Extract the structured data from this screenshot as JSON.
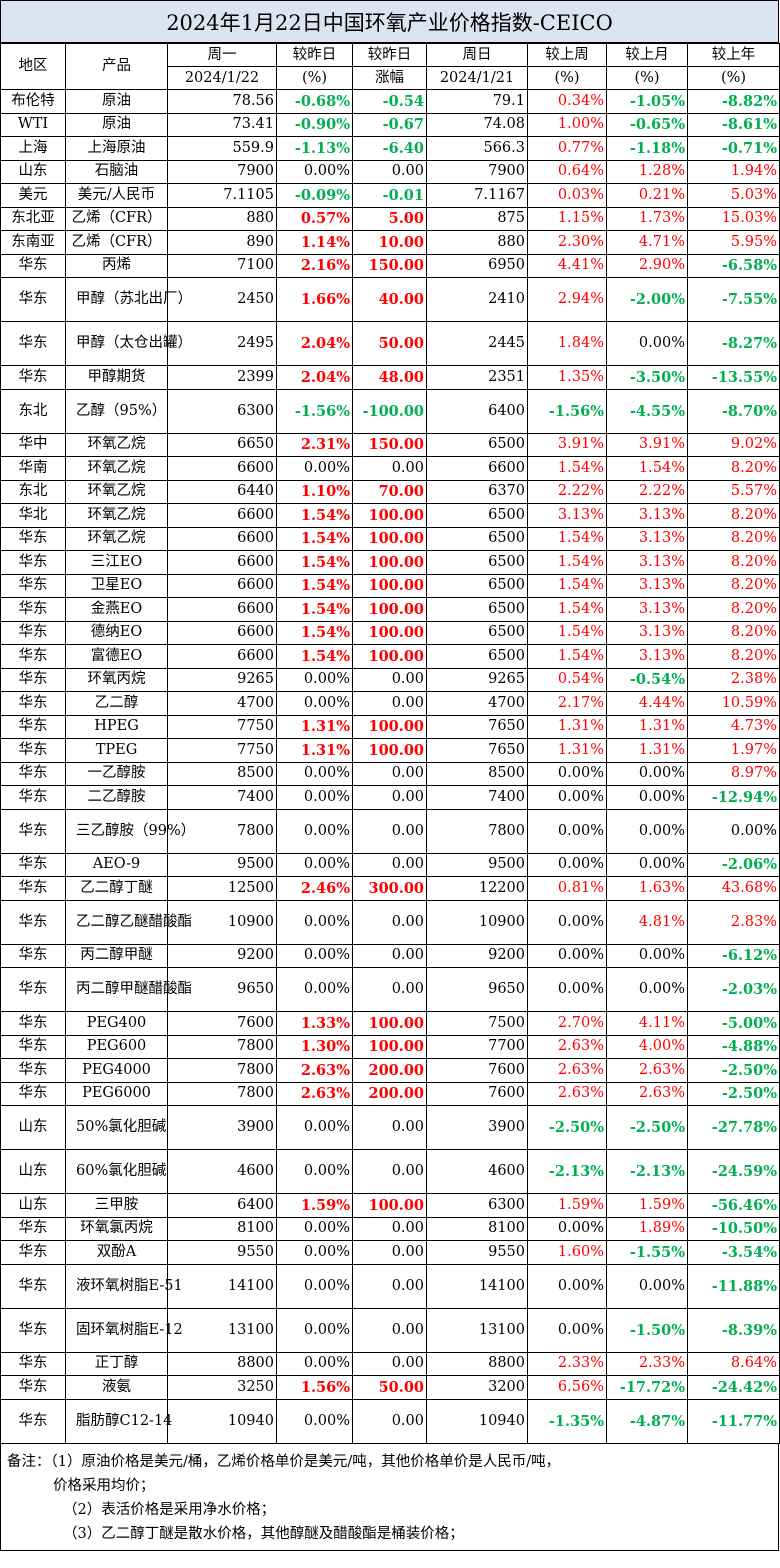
{
  "title": "2024年1月22日中国环氧产业价格指数-CEICO",
  "headers": {
    "region": "地区",
    "product": "产品",
    "mon": "周一",
    "mon_date": "2024/1/22",
    "chg_pct": "较昨日",
    "chg_pct_unit": "(%)",
    "chg_amt": "较昨日",
    "chg_amt_unit": "涨幅",
    "sun": "周日",
    "sun_date": "2024/1/21",
    "wk": "较上周",
    "wk_unit": "(%)",
    "mo": "较上月",
    "mo_unit": "(%)",
    "yr": "较上年",
    "yr_unit": "(%)"
  },
  "rows": [
    {
      "region": "布伦特",
      "product": "原油",
      "mon": "78.56",
      "dpct": "-0.68%",
      "damt": "-0.54",
      "sun": "79.1",
      "wk": "0.34%",
      "mo": "-1.05%",
      "yr": "-8.82%"
    },
    {
      "region": "WTI",
      "product": "原油",
      "mon": "73.41",
      "dpct": "-0.90%",
      "damt": "-0.67",
      "sun": "74.08",
      "wk": "1.00%",
      "mo": "-0.65%",
      "yr": "-8.61%"
    },
    {
      "region": "上海",
      "product": "上海原油",
      "mon": "559.9",
      "dpct": "-1.13%",
      "damt": "-6.40",
      "sun": "566.3",
      "wk": "0.77%",
      "mo": "-1.18%",
      "yr": "-0.71%"
    },
    {
      "region": "山东",
      "product": "石脑油",
      "mon": "7900",
      "dpct": "0.00%",
      "damt": "0.00",
      "sun": "7900",
      "wk": "0.64%",
      "mo": "1.28%",
      "yr": "1.94%"
    },
    {
      "region": "美元",
      "product": "美元/人民币",
      "mon": "7.1105",
      "dpct": "-0.09%",
      "damt": "-0.01",
      "sun": "7.1167",
      "wk": "0.03%",
      "mo": "0.21%",
      "yr": "5.03%"
    },
    {
      "region": "东北亚",
      "product": "乙烯（CFR）",
      "mon": "880",
      "dpct": "0.57%",
      "damt": "5.00",
      "sun": "875",
      "wk": "1.15%",
      "mo": "1.73%",
      "yr": "15.03%"
    },
    {
      "region": "东南亚",
      "product": "乙烯（CFR）",
      "mon": "890",
      "dpct": "1.14%",
      "damt": "10.00",
      "sun": "880",
      "wk": "2.30%",
      "mo": "4.71%",
      "yr": "5.95%"
    },
    {
      "region": "华东",
      "product": "丙烯",
      "mon": "7100",
      "dpct": "2.16%",
      "damt": "150.00",
      "sun": "6950",
      "wk": "4.41%",
      "mo": "2.90%",
      "yr": "-6.58%"
    },
    {
      "region": "华东",
      "product": "甲醇（苏北出厂）",
      "mon": "2450",
      "dpct": "1.66%",
      "damt": "40.00",
      "sun": "2410",
      "wk": "2.94%",
      "mo": "-2.00%",
      "yr": "-7.55%"
    },
    {
      "region": "华东",
      "product": "甲醇（太仓出罐）",
      "mon": "2495",
      "dpct": "2.04%",
      "damt": "50.00",
      "sun": "2445",
      "wk": "1.84%",
      "mo": "0.00%",
      "yr": "-8.27%"
    },
    {
      "region": "华东",
      "product": "甲醇期货",
      "mon": "2399",
      "dpct": "2.04%",
      "damt": "48.00",
      "sun": "2351",
      "wk": "1.35%",
      "mo": "-3.50%",
      "yr": "-13.55%"
    },
    {
      "region": "东北",
      "product": "乙醇（95%）",
      "mon": "6300",
      "dpct": "-1.56%",
      "damt": "-100.00",
      "sun": "6400",
      "wk": "-1.56%",
      "mo": "-4.55%",
      "yr": "-8.70%"
    },
    {
      "region": "华中",
      "product": "环氧乙烷",
      "mon": "6650",
      "dpct": "2.31%",
      "damt": "150.00",
      "sun": "6500",
      "wk": "3.91%",
      "mo": "3.91%",
      "yr": "9.02%"
    },
    {
      "region": "华南",
      "product": "环氧乙烷",
      "mon": "6600",
      "dpct": "0.00%",
      "damt": "0.00",
      "sun": "6600",
      "wk": "1.54%",
      "mo": "1.54%",
      "yr": "8.20%"
    },
    {
      "region": "东北",
      "product": "环氧乙烷",
      "mon": "6440",
      "dpct": "1.10%",
      "damt": "70.00",
      "sun": "6370",
      "wk": "2.22%",
      "mo": "2.22%",
      "yr": "5.57%"
    },
    {
      "region": "华北",
      "product": "环氧乙烷",
      "mon": "6600",
      "dpct": "1.54%",
      "damt": "100.00",
      "sun": "6500",
      "wk": "3.13%",
      "mo": "3.13%",
      "yr": "8.20%"
    },
    {
      "region": "华东",
      "product": "环氧乙烷",
      "mon": "6600",
      "dpct": "1.54%",
      "damt": "100.00",
      "sun": "6500",
      "wk": "1.54%",
      "mo": "3.13%",
      "yr": "8.20%"
    },
    {
      "region": "华东",
      "product": "三江EO",
      "mon": "6600",
      "dpct": "1.54%",
      "damt": "100.00",
      "sun": "6500",
      "wk": "1.54%",
      "mo": "3.13%",
      "yr": "8.20%"
    },
    {
      "region": "华东",
      "product": "卫星EO",
      "mon": "6600",
      "dpct": "1.54%",
      "damt": "100.00",
      "sun": "6500",
      "wk": "1.54%",
      "mo": "3.13%",
      "yr": "8.20%"
    },
    {
      "region": "华东",
      "product": "金燕EO",
      "mon": "6600",
      "dpct": "1.54%",
      "damt": "100.00",
      "sun": "6500",
      "wk": "1.54%",
      "mo": "3.13%",
      "yr": "8.20%"
    },
    {
      "region": "华东",
      "product": "德纳EO",
      "mon": "6600",
      "dpct": "1.54%",
      "damt": "100.00",
      "sun": "6500",
      "wk": "1.54%",
      "mo": "3.13%",
      "yr": "8.20%"
    },
    {
      "region": "华东",
      "product": "富德EO",
      "mon": "6600",
      "dpct": "1.54%",
      "damt": "100.00",
      "sun": "6500",
      "wk": "1.54%",
      "mo": "3.13%",
      "yr": "8.20%"
    },
    {
      "region": "华东",
      "product": "环氧丙烷",
      "mon": "9265",
      "dpct": "0.00%",
      "damt": "0.00",
      "sun": "9265",
      "wk": "0.54%",
      "mo": "-0.54%",
      "yr": "2.38%"
    },
    {
      "region": "华东",
      "product": "乙二醇",
      "mon": "4700",
      "dpct": "0.00%",
      "damt": "0.00",
      "sun": "4700",
      "wk": "2.17%",
      "mo": "4.44%",
      "yr": "10.59%"
    },
    {
      "region": "华东",
      "product": "HPEG",
      "mon": "7750",
      "dpct": "1.31%",
      "damt": "100.00",
      "sun": "7650",
      "wk": "1.31%",
      "mo": "1.31%",
      "yr": "4.73%"
    },
    {
      "region": "华东",
      "product": "TPEG",
      "mon": "7750",
      "dpct": "1.31%",
      "damt": "100.00",
      "sun": "7650",
      "wk": "1.31%",
      "mo": "1.31%",
      "yr": "1.97%"
    },
    {
      "region": "华东",
      "product": "一乙醇胺",
      "mon": "8500",
      "dpct": "0.00%",
      "damt": "0.00",
      "sun": "8500",
      "wk": "0.00%",
      "mo": "0.00%",
      "yr": "8.97%"
    },
    {
      "region": "华东",
      "product": "二乙醇胺",
      "mon": "7400",
      "dpct": "0.00%",
      "damt": "0.00",
      "sun": "7400",
      "wk": "0.00%",
      "mo": "0.00%",
      "yr": "-12.94%"
    },
    {
      "region": "华东",
      "product": "三乙醇胺（99%）",
      "mon": "7800",
      "dpct": "0.00%",
      "damt": "0.00",
      "sun": "7800",
      "wk": "0.00%",
      "mo": "0.00%",
      "yr": "0.00%"
    },
    {
      "region": "华东",
      "product": "AEO-9",
      "mon": "9500",
      "dpct": "0.00%",
      "damt": "0.00",
      "sun": "9500",
      "wk": "0.00%",
      "mo": "0.00%",
      "yr": "-2.06%"
    },
    {
      "region": "华东",
      "product": "乙二醇丁醚",
      "mon": "12500",
      "dpct": "2.46%",
      "damt": "300.00",
      "sun": "12200",
      "wk": "0.81%",
      "mo": "1.63%",
      "yr": "43.68%"
    },
    {
      "region": "华东",
      "product": "乙二醇乙醚醋酸酯",
      "mon": "10900",
      "dpct": "0.00%",
      "damt": "0.00",
      "sun": "10900",
      "wk": "0.00%",
      "mo": "4.81%",
      "yr": "2.83%"
    },
    {
      "region": "华东",
      "product": "丙二醇甲醚",
      "mon": "9200",
      "dpct": "0.00%",
      "damt": "0.00",
      "sun": "9200",
      "wk": "0.00%",
      "mo": "0.00%",
      "yr": "-6.12%"
    },
    {
      "region": "华东",
      "product": "丙二醇甲醚醋酸酯",
      "mon": "9650",
      "dpct": "0.00%",
      "damt": "0.00",
      "sun": "9650",
      "wk": "0.00%",
      "mo": "0.00%",
      "yr": "-2.03%"
    },
    {
      "region": "华东",
      "product": "PEG400",
      "mon": "7600",
      "dpct": "1.33%",
      "damt": "100.00",
      "sun": "7500",
      "wk": "2.70%",
      "mo": "4.11%",
      "yr": "-5.00%"
    },
    {
      "region": "华东",
      "product": "PEG600",
      "mon": "7800",
      "dpct": "1.30%",
      "damt": "100.00",
      "sun": "7700",
      "wk": "2.63%",
      "mo": "4.00%",
      "yr": "-4.88%"
    },
    {
      "region": "华东",
      "product": "PEG4000",
      "mon": "7800",
      "dpct": "2.63%",
      "damt": "200.00",
      "sun": "7600",
      "wk": "2.63%",
      "mo": "2.63%",
      "yr": "-2.50%"
    },
    {
      "region": "华东",
      "product": "PEG6000",
      "mon": "7800",
      "dpct": "2.63%",
      "damt": "200.00",
      "sun": "7600",
      "wk": "2.63%",
      "mo": "2.63%",
      "yr": "-2.50%"
    },
    {
      "region": "山东",
      "product": "50%氯化胆碱",
      "mon": "3900",
      "dpct": "0.00%",
      "damt": "0.00",
      "sun": "3900",
      "wk": "-2.50%",
      "mo": "-2.50%",
      "yr": "-27.78%"
    },
    {
      "region": "山东",
      "product": "60%氯化胆碱",
      "mon": "4600",
      "dpct": "0.00%",
      "damt": "0.00",
      "sun": "4600",
      "wk": "-2.13%",
      "mo": "-2.13%",
      "yr": "-24.59%"
    },
    {
      "region": "山东",
      "product": "三甲胺",
      "mon": "6400",
      "dpct": "1.59%",
      "damt": "100.00",
      "sun": "6300",
      "wk": "1.59%",
      "mo": "1.59%",
      "yr": "-56.46%"
    },
    {
      "region": "华东",
      "product": "环氧氯丙烷",
      "mon": "8100",
      "dpct": "0.00%",
      "damt": "0.00",
      "sun": "8100",
      "wk": "0.00%",
      "mo": "1.89%",
      "yr": "-10.50%"
    },
    {
      "region": "华东",
      "product": "双酚A",
      "mon": "9550",
      "dpct": "0.00%",
      "damt": "0.00",
      "sun": "9550",
      "wk": "1.60%",
      "mo": "-1.55%",
      "yr": "-3.54%"
    },
    {
      "region": "华东",
      "product": "液环氧树脂E-51",
      "mon": "14100",
      "dpct": "0.00%",
      "damt": "0.00",
      "sun": "14100",
      "wk": "0.00%",
      "mo": "0.00%",
      "yr": "-11.88%"
    },
    {
      "region": "华东",
      "product": "固环氧树脂E-12",
      "mon": "13100",
      "dpct": "0.00%",
      "damt": "0.00",
      "sun": "13100",
      "wk": "0.00%",
      "mo": "-1.50%",
      "yr": "-8.39%"
    },
    {
      "region": "华东",
      "product": "正丁醇",
      "mon": "8800",
      "dpct": "0.00%",
      "damt": "0.00",
      "sun": "8800",
      "wk": "2.33%",
      "mo": "2.33%",
      "yr": "8.64%"
    },
    {
      "region": "华东",
      "product": "液氨",
      "mon": "3250",
      "dpct": "1.56%",
      "damt": "50.00",
      "sun": "3200",
      "wk": "6.56%",
      "mo": "-17.72%",
      "yr": "-24.42%"
    },
    {
      "region": "华东",
      "product": "脂肪醇C12-14",
      "mon": "10940",
      "dpct": "0.00%",
      "damt": "0.00",
      "sun": "10940",
      "wk": "-1.35%",
      "mo": "-4.87%",
      "yr": "-11.77%"
    }
  ],
  "notes": [
    "备注：（1）原油价格是美元/桶，乙烯价格单价是美元/吨，其他价格单价是人民币/吨，",
    "价格采用均价；",
    "（2）表活价格是采用净水价格；",
    "（3）乙二醇丁醚是散水价格，其他醇醚及醋酸酯是桶装价格；"
  ],
  "colors": {
    "title_bg": "#dbe5f1",
    "up": "#ff0000",
    "down": "#00b050"
  }
}
